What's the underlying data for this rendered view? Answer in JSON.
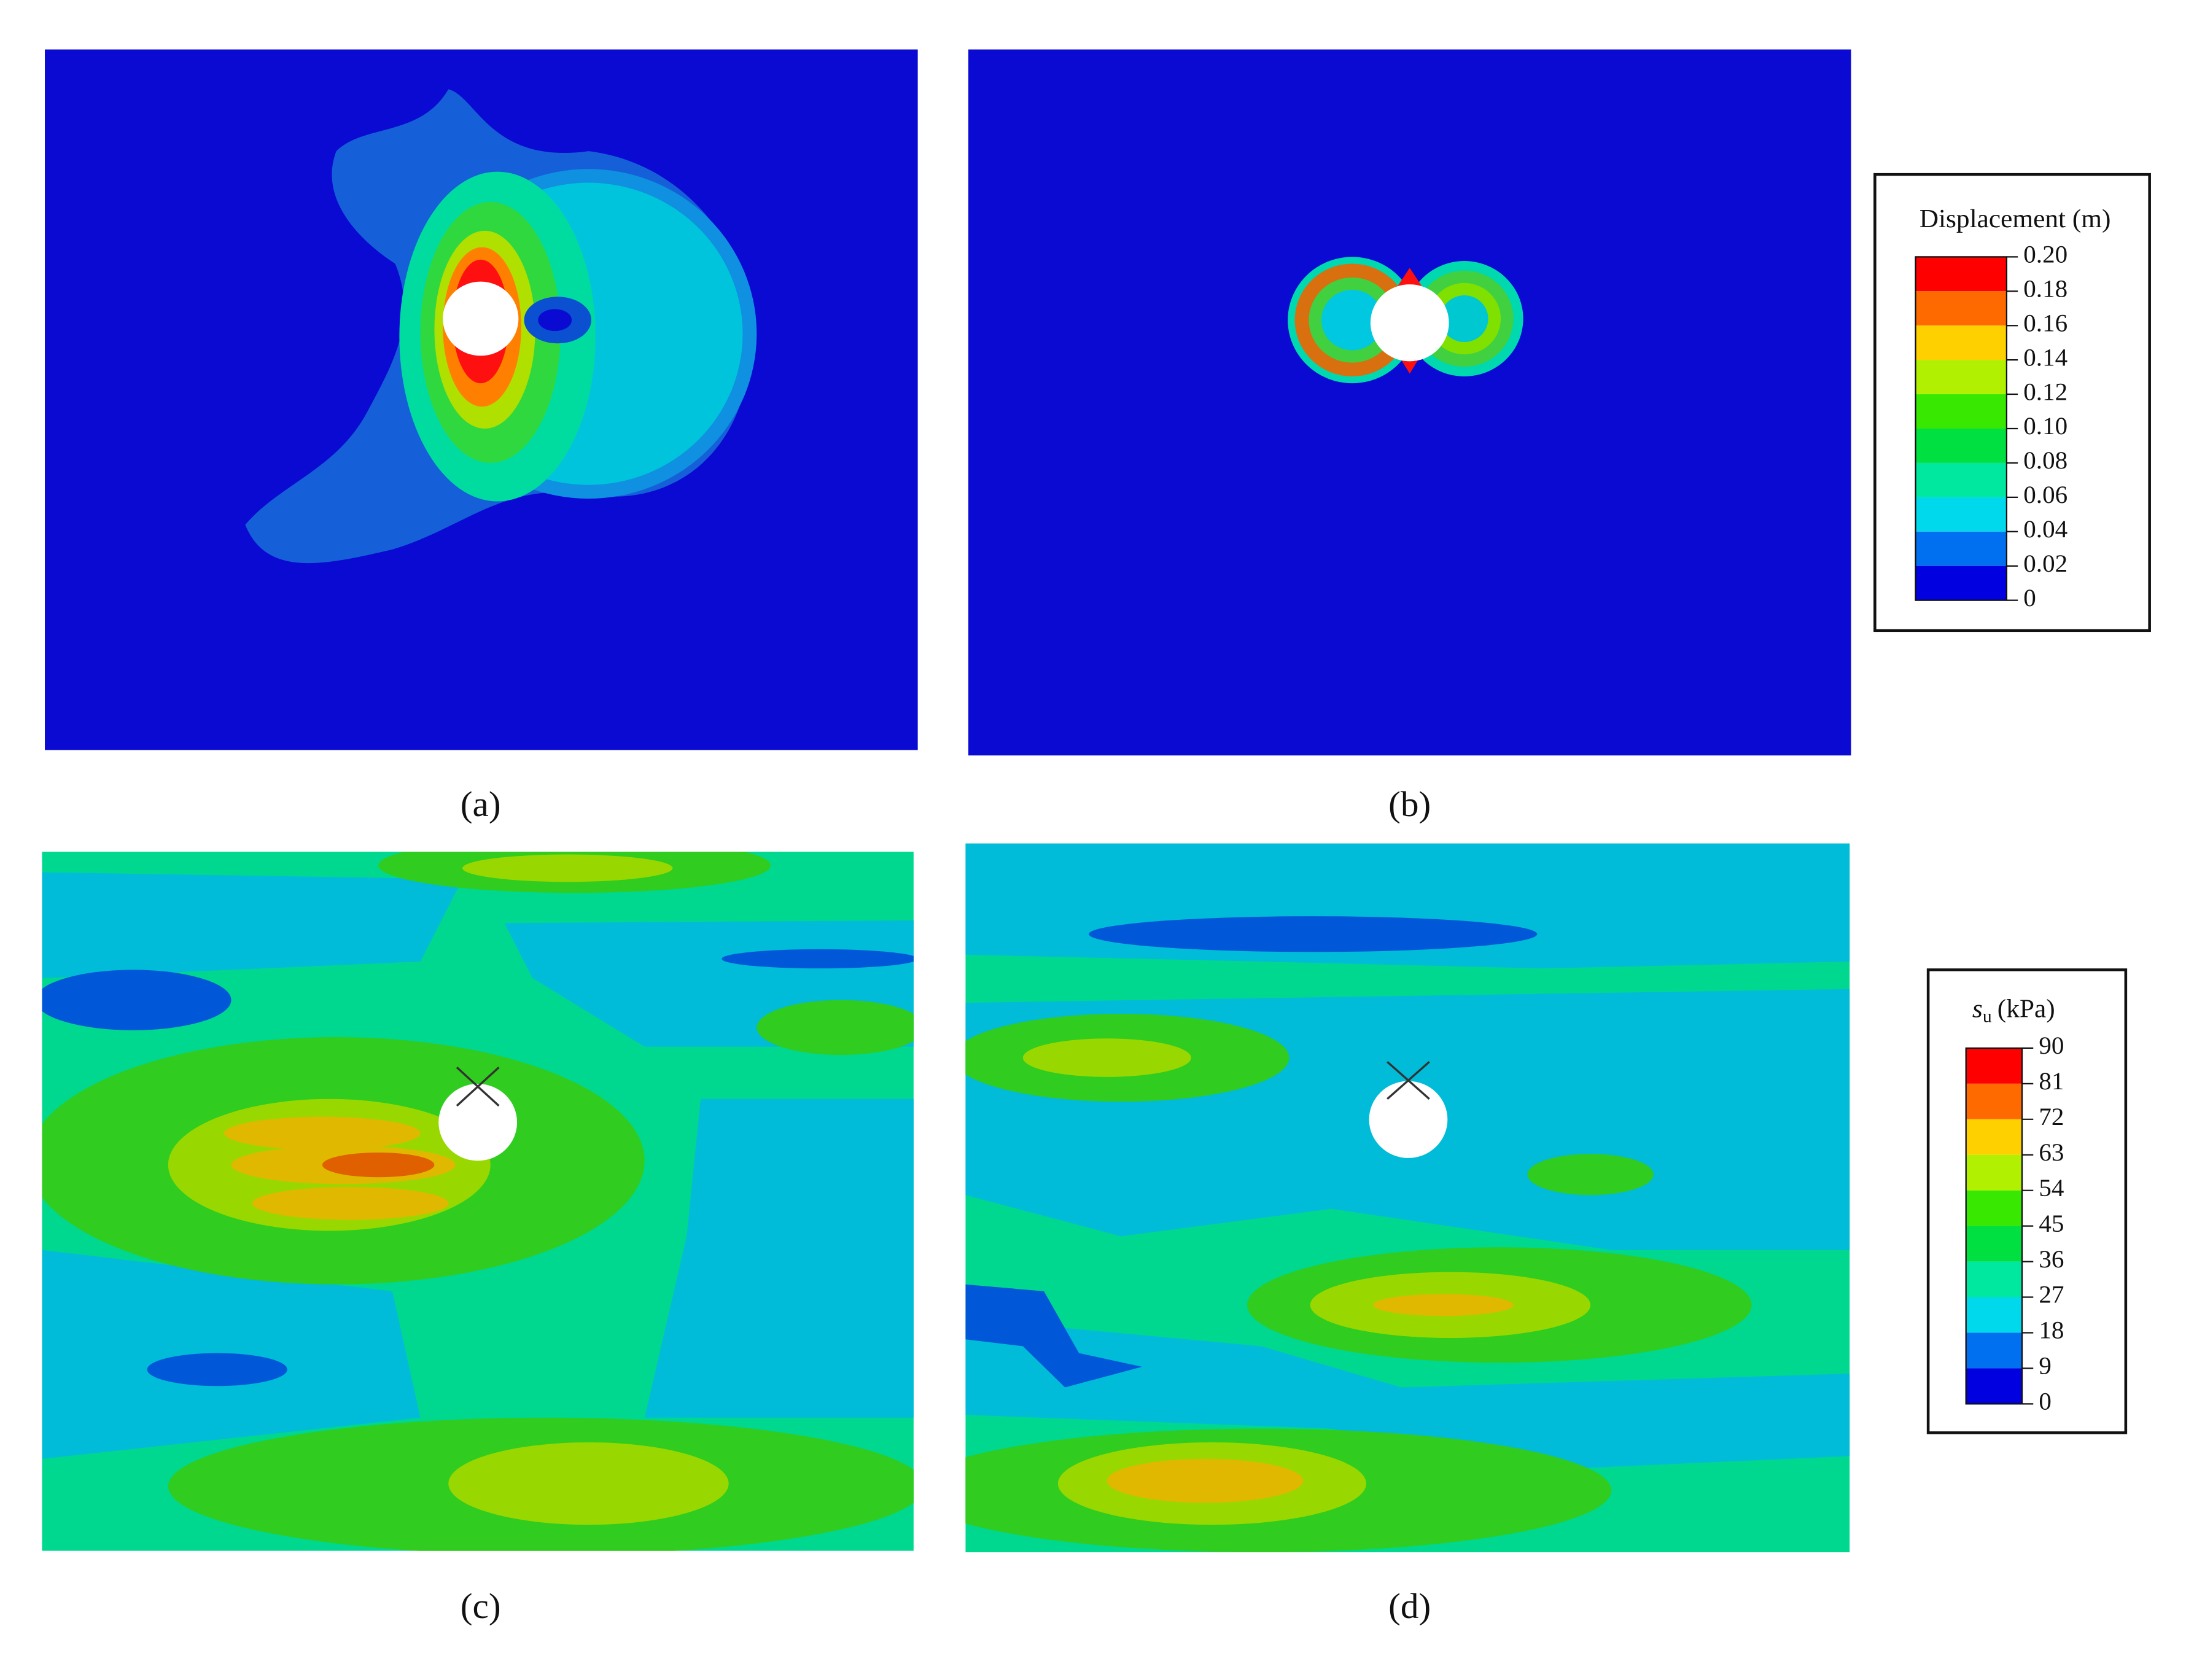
{
  "panels": [
    {
      "label": "(a)"
    },
    {
      "label": "(b)"
    },
    {
      "label": "(c)"
    },
    {
      "label": "(d)"
    }
  ],
  "legends": [
    {
      "title": "Displacement (m)",
      "colors": [
        "#ff0000",
        "#ff6a00",
        "#ffd000",
        "#b0f000",
        "#38e800",
        "#00e040",
        "#00e8a0",
        "#00d8ec",
        "#0070f0",
        "#0000e0"
      ],
      "ticks": [
        "0.20",
        "0.18",
        "0.16",
        "0.14",
        "0.12",
        "0.10",
        "0.08",
        "0.06",
        "0.04",
        "0.02",
        "0"
      ]
    },
    {
      "title": {
        "symbol": "s",
        "subscript": "u",
        "unit": "(kPa)"
      },
      "colors": [
        "#ff0000",
        "#ff6a00",
        "#ffd000",
        "#b0f000",
        "#38e800",
        "#00e040",
        "#00e8a0",
        "#00d8ec",
        "#0070f0",
        "#0000e0"
      ],
      "ticks": [
        "90",
        "81",
        "72",
        "63",
        "54",
        "45",
        "36",
        "27",
        "18",
        "9",
        "0"
      ]
    }
  ]
}
